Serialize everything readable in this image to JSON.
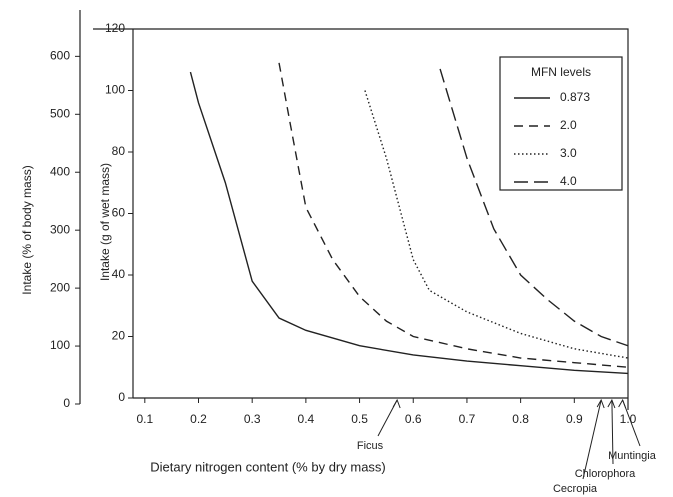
{
  "chart_data": {
    "type": "line",
    "xlabel": "Dietary nitrogen content (% by dry mass)",
    "ylabel": "Intake (g of wet mass)",
    "y2label": "Intake (% of body mass)",
    "legend_title": "MFN levels",
    "legend": "upper right",
    "xlim": [
      0.078,
      1.0
    ],
    "xticks": [
      0.1,
      0.2,
      0.3,
      0.4,
      0.5,
      0.6,
      0.7,
      0.8,
      0.9,
      {
        "value": 1.0,
        "label": "1.0"
      }
    ],
    "ylim": [
      0,
      120
    ],
    "yticks": [
      0,
      20,
      40,
      60,
      80,
      100,
      120
    ],
    "y2lim": [
      0,
      680
    ],
    "y2ticks": [
      0,
      100,
      200,
      300,
      400,
      500,
      600
    ],
    "series": [
      {
        "name": "0.873",
        "color": "#222222",
        "linestyle": "solid",
        "x": [
          0.185,
          0.2,
          0.25,
          0.3,
          0.35,
          0.4,
          0.5,
          0.6,
          0.7,
          0.8,
          0.9,
          1.0
        ],
        "values": [
          106,
          96,
          70,
          38,
          26,
          22,
          17,
          14,
          12,
          10.5,
          9,
          8
        ]
      },
      {
        "name": "2.0",
        "color": "#222222",
        "linestyle": "dashed",
        "x": [
          0.35,
          0.37,
          0.4,
          0.45,
          0.5,
          0.55,
          0.6,
          0.7,
          0.8,
          0.9,
          1.0
        ],
        "values": [
          109,
          90,
          62,
          45,
          33,
          25,
          20,
          16,
          13,
          11.5,
          10
        ]
      },
      {
        "name": "3.0",
        "color": "#222222",
        "linestyle": "dotted",
        "x": [
          0.51,
          0.55,
          0.6,
          0.63,
          0.7,
          0.8,
          0.9,
          1.0
        ],
        "values": [
          100,
          78,
          45,
          35,
          28,
          21,
          16,
          13
        ]
      },
      {
        "name": "4.0",
        "color": "#222222",
        "linestyle": "longdash",
        "x": [
          0.65,
          0.7,
          0.75,
          0.8,
          0.85,
          0.9,
          0.95,
          1.0
        ],
        "values": [
          107,
          78,
          55,
          40,
          32,
          25,
          20,
          17
        ]
      }
    ],
    "annotations": [
      {
        "text": "Ficus",
        "x": 0.57
      },
      {
        "text": "Cecropia",
        "x": 0.95
      },
      {
        "text": "Chlorophora",
        "x": 0.97
      },
      {
        "text": "Muntingia",
        "x": 0.99
      }
    ]
  }
}
